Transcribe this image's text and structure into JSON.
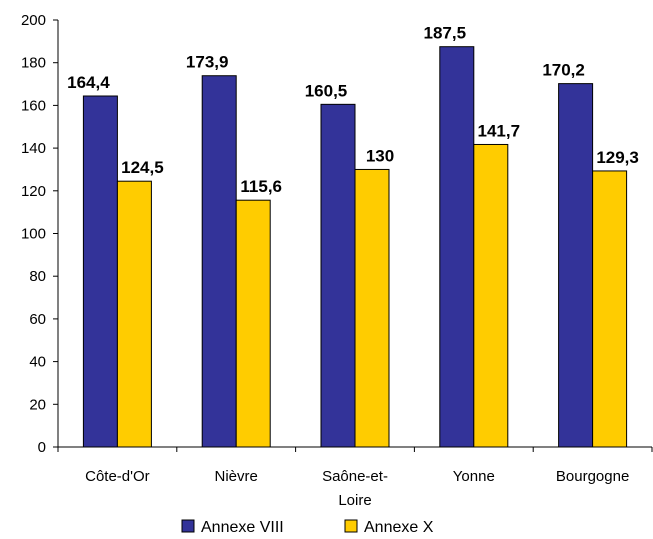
{
  "chart_data": {
    "type": "bar",
    "categories": [
      "Côte-d'Or",
      "Nièvre",
      "Saône-et-Loire",
      "Yonne",
      "Bourgogne"
    ],
    "category_lines": [
      [
        "Côte-d'Or"
      ],
      [
        "Nièvre"
      ],
      [
        "Saône-et-",
        "Loire"
      ],
      [
        "Yonne"
      ],
      [
        "Bourgogne"
      ]
    ],
    "series": [
      {
        "name": "Annexe VIII",
        "values": [
          164.4,
          173.9,
          160.5,
          187.5,
          170.2
        ],
        "labels": [
          "164,4",
          "173,9",
          "160,5",
          "187,5",
          "170,2"
        ],
        "color": "#333399"
      },
      {
        "name": "Annexe X",
        "values": [
          124.5,
          115.6,
          130,
          141.7,
          129.3
        ],
        "labels": [
          "124,5",
          "115,6",
          "130",
          "141,7",
          "129,3"
        ],
        "color": "#FFCC00"
      }
    ],
    "ylim": [
      0,
      200
    ],
    "yticks": [
      0,
      20,
      40,
      60,
      80,
      100,
      120,
      140,
      160,
      180,
      200
    ],
    "legend_position": "bottom",
    "grid": false
  }
}
